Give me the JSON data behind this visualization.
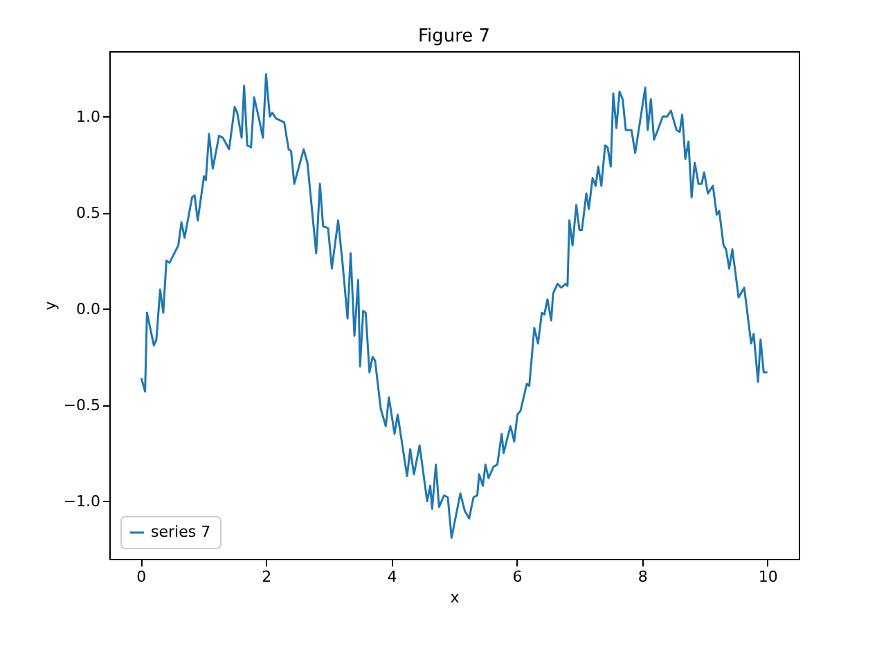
{
  "chart_data": {
    "type": "line",
    "title": "Figure 7",
    "xlabel": "x",
    "ylabel": "y",
    "xlim": [
      -0.5,
      10.5
    ],
    "ylim": [
      -1.3,
      1.34
    ],
    "xticks": [
      0,
      2,
      4,
      6,
      8,
      10
    ],
    "yticks": [
      {
        "value": -1,
        "label": "−1.0"
      },
      {
        "value": -0.5,
        "label": "−0.5"
      },
      {
        "value": 0,
        "label": "0.0"
      },
      {
        "value": 0.5,
        "label": "0.5"
      },
      {
        "value": 1,
        "label": "1.0"
      }
    ],
    "grid": false,
    "legend": "bottom left",
    "marker": "none",
    "line_style": "solid",
    "series": [
      {
        "name": "series 7",
        "color": "#1f77b4",
        "x": [
          0.01,
          0.07,
          0.1,
          0.21,
          0.25,
          0.31,
          0.36,
          0.41,
          0.46,
          0.6,
          0.65,
          0.7,
          0.82,
          0.86,
          0.91,
          1.01,
          1.04,
          1.09,
          1.15,
          1.25,
          1.31,
          1.41,
          1.5,
          1.54,
          1.61,
          1.65,
          1.7,
          1.76,
          1.81,
          1.88,
          1.95,
          2.0,
          2.06,
          2.1,
          2.16,
          2.29,
          2.36,
          2.4,
          2.45,
          2.6,
          2.66,
          2.8,
          2.86,
          2.91,
          2.99,
          3.05,
          3.15,
          3.22,
          3.3,
          3.35,
          3.41,
          3.47,
          3.5,
          3.55,
          3.59,
          3.65,
          3.7,
          3.74,
          3.83,
          3.91,
          3.96,
          4.05,
          4.1,
          4.25,
          4.3,
          4.36,
          4.45,
          4.57,
          4.62,
          4.65,
          4.71,
          4.76,
          4.84,
          4.9,
          4.96,
          5.1,
          5.17,
          5.24,
          5.31,
          5.37,
          5.4,
          5.46,
          5.5,
          5.55,
          5.63,
          5.69,
          5.76,
          5.79,
          5.9,
          5.96,
          6.01,
          6.06,
          6.16,
          6.2,
          6.28,
          6.34,
          6.4,
          6.44,
          6.49,
          6.55,
          6.58,
          6.65,
          6.71,
          6.78,
          6.81,
          6.84,
          6.89,
          6.95,
          7.0,
          7.04,
          7.11,
          7.15,
          7.21,
          7.26,
          7.3,
          7.35,
          7.41,
          7.45,
          7.5,
          7.54,
          7.59,
          7.64,
          7.69,
          7.74,
          7.83,
          7.89,
          8.05,
          8.09,
          8.14,
          8.19,
          8.25,
          8.33,
          8.4,
          8.46,
          8.55,
          8.6,
          8.64,
          8.69,
          8.74,
          8.79,
          8.84,
          8.9,
          8.95,
          8.99,
          9.05,
          9.13,
          9.19,
          9.23,
          9.3,
          9.34,
          9.39,
          9.44,
          9.54,
          9.63,
          9.74,
          9.78,
          9.85,
          9.89,
          9.94,
          10.0
        ],
        "values": [
          -0.36,
          -0.43,
          -0.02,
          -0.19,
          -0.16,
          0.1,
          -0.02,
          0.25,
          0.24,
          0.33,
          0.45,
          0.37,
          0.58,
          0.59,
          0.46,
          0.69,
          0.67,
          0.91,
          0.73,
          0.9,
          0.89,
          0.83,
          1.05,
          1.02,
          0.89,
          1.16,
          0.85,
          0.84,
          1.1,
          1.0,
          0.89,
          1.22,
          1.0,
          1.02,
          0.99,
          0.97,
          0.83,
          0.82,
          0.65,
          0.83,
          0.76,
          0.29,
          0.65,
          0.43,
          0.42,
          0.21,
          0.46,
          0.24,
          -0.05,
          0.29,
          -0.14,
          0.15,
          -0.3,
          -0.01,
          -0.02,
          -0.33,
          -0.25,
          -0.27,
          -0.52,
          -0.61,
          -0.46,
          -0.65,
          -0.55,
          -0.87,
          -0.73,
          -0.86,
          -0.71,
          -1.0,
          -0.92,
          -1.04,
          -0.81,
          -1.03,
          -0.97,
          -0.98,
          -1.19,
          -0.96,
          -1.05,
          -1.09,
          -0.98,
          -0.97,
          -0.86,
          -0.92,
          -0.81,
          -0.88,
          -0.82,
          -0.81,
          -0.65,
          -0.75,
          -0.61,
          -0.69,
          -0.55,
          -0.53,
          -0.39,
          -0.4,
          -0.1,
          -0.18,
          -0.02,
          -0.03,
          0.05,
          -0.06,
          0.08,
          0.13,
          0.11,
          0.13,
          0.12,
          0.46,
          0.33,
          0.54,
          0.41,
          0.41,
          0.6,
          0.52,
          0.68,
          0.64,
          0.74,
          0.64,
          0.85,
          0.84,
          0.74,
          1.12,
          0.94,
          1.13,
          1.09,
          0.93,
          0.93,
          0.81,
          1.15,
          0.93,
          1.09,
          0.88,
          0.93,
          1.0,
          1.0,
          1.03,
          0.93,
          0.92,
          1.01,
          0.78,
          0.87,
          0.58,
          0.76,
          0.65,
          0.65,
          0.71,
          0.6,
          0.64,
          0.49,
          0.51,
          0.33,
          0.31,
          0.21,
          0.31,
          0.06,
          0.11,
          -0.18,
          -0.13,
          -0.38,
          -0.16,
          -0.33,
          -0.33
        ]
      }
    ]
  }
}
